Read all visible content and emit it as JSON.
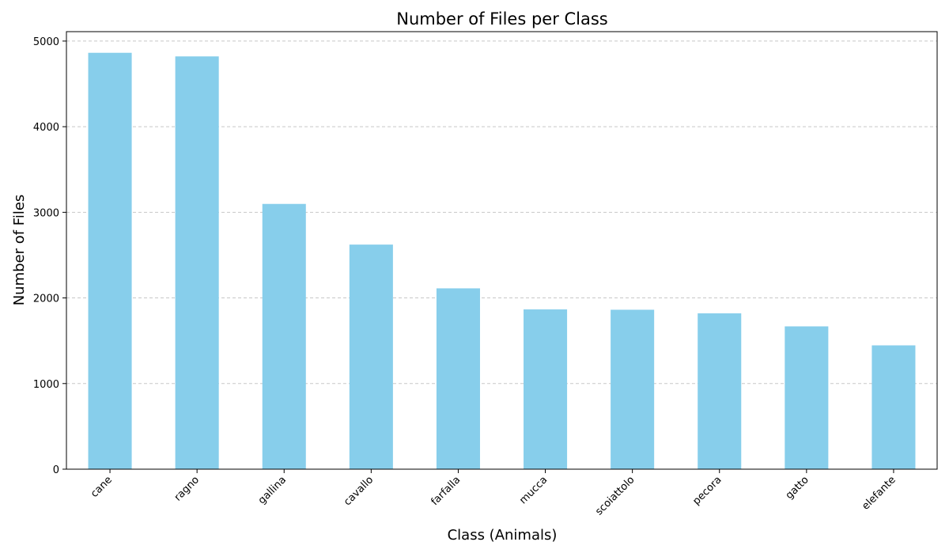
{
  "chart_data": {
    "type": "bar",
    "title": "Number of Files per Class",
    "xlabel": "Class (Animals)",
    "ylabel": "Number of Files",
    "categories": [
      "cane",
      "ragno",
      "gallina",
      "cavallo",
      "farfalla",
      "mucca",
      "scoiattolo",
      "pecora",
      "gatto",
      "elefante"
    ],
    "values": [
      4863,
      4821,
      3098,
      2623,
      2112,
      1866,
      1862,
      1820,
      1668,
      1446
    ],
    "ylim": [
      0,
      5110
    ],
    "yticks": [
      0,
      1000,
      2000,
      3000,
      4000,
      5000
    ],
    "ytick_labels": [
      "0",
      "1000",
      "2000",
      "3000",
      "4000",
      "5000"
    ],
    "grid": {
      "axis": "y",
      "style": "dashed",
      "color": "#c8c8c8"
    },
    "bar_color": "#87ceeb",
    "xtick_rotation_deg": 45
  }
}
